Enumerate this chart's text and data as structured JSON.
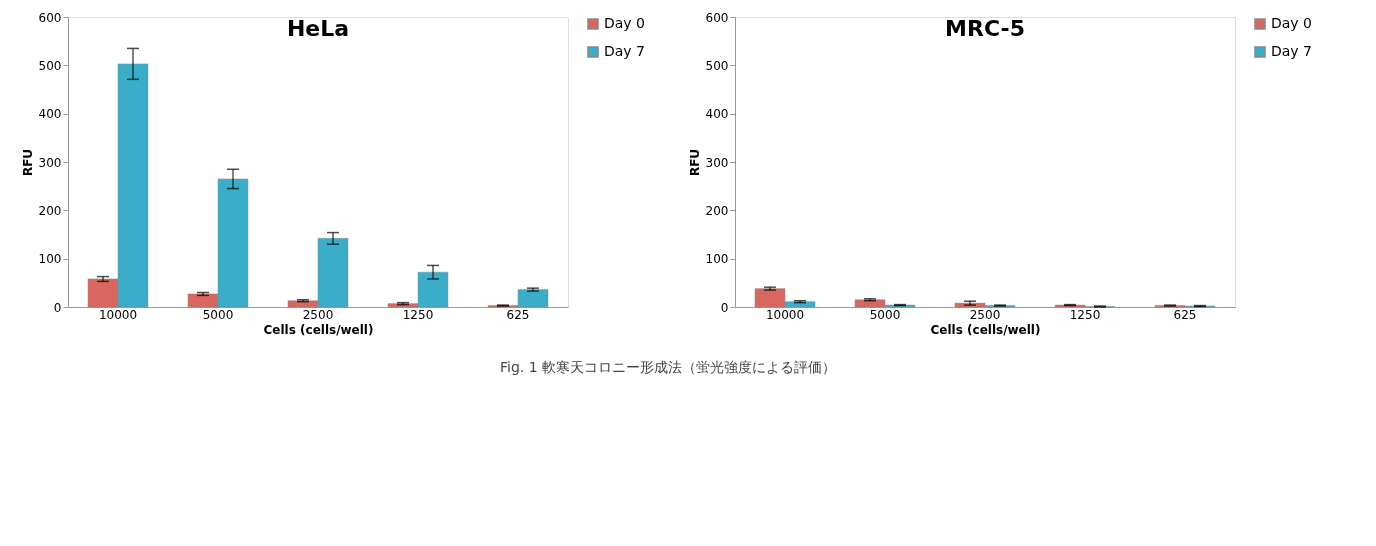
{
  "chart_data": [
    {
      "type": "bar",
      "title": "HeLa",
      "xlabel": "Cells (cells/well)",
      "ylabel": "RFU",
      "categories": [
        "10000",
        "5000",
        "2500",
        "1250",
        "625"
      ],
      "ylim": [
        0,
        600
      ],
      "yticks": [
        0,
        100,
        200,
        300,
        400,
        500,
        600
      ],
      "grid": false,
      "legend": "right",
      "series": [
        {
          "name": "Day 0",
          "color": "#d9665f",
          "values": [
            58,
            27,
            13,
            7,
            3
          ],
          "errors": [
            5,
            3,
            2,
            2,
            1
          ]
        },
        {
          "name": "Day 7",
          "color": "#3aaec9",
          "values": [
            503,
            265,
            142,
            72,
            36
          ],
          "errors": [
            32,
            20,
            12,
            14,
            3
          ]
        }
      ]
    },
    {
      "type": "bar",
      "title": "MRC-5",
      "xlabel": "Cells (cells/well)",
      "ylabel": "RFU",
      "categories": [
        "10000",
        "5000",
        "2500",
        "1250",
        "625"
      ],
      "ylim": [
        0,
        600
      ],
      "yticks": [
        0,
        100,
        200,
        300,
        400,
        500,
        600
      ],
      "grid": false,
      "legend": "right",
      "annotations": [
        "Fig. 1 軟寒天コロニー形成法（蛍光強度による評価）"
      ],
      "series": [
        {
          "name": "Day 0",
          "color": "#d9665f",
          "values": [
            38,
            15,
            8,
            4,
            3
          ],
          "errors": [
            3,
            2,
            4,
            1,
            1
          ]
        },
        {
          "name": "Day 7",
          "color": "#3aaec9",
          "values": [
            11,
            4,
            3,
            1,
            2
          ],
          "errors": [
            2,
            1,
            1,
            1,
            1
          ]
        }
      ]
    }
  ]
}
